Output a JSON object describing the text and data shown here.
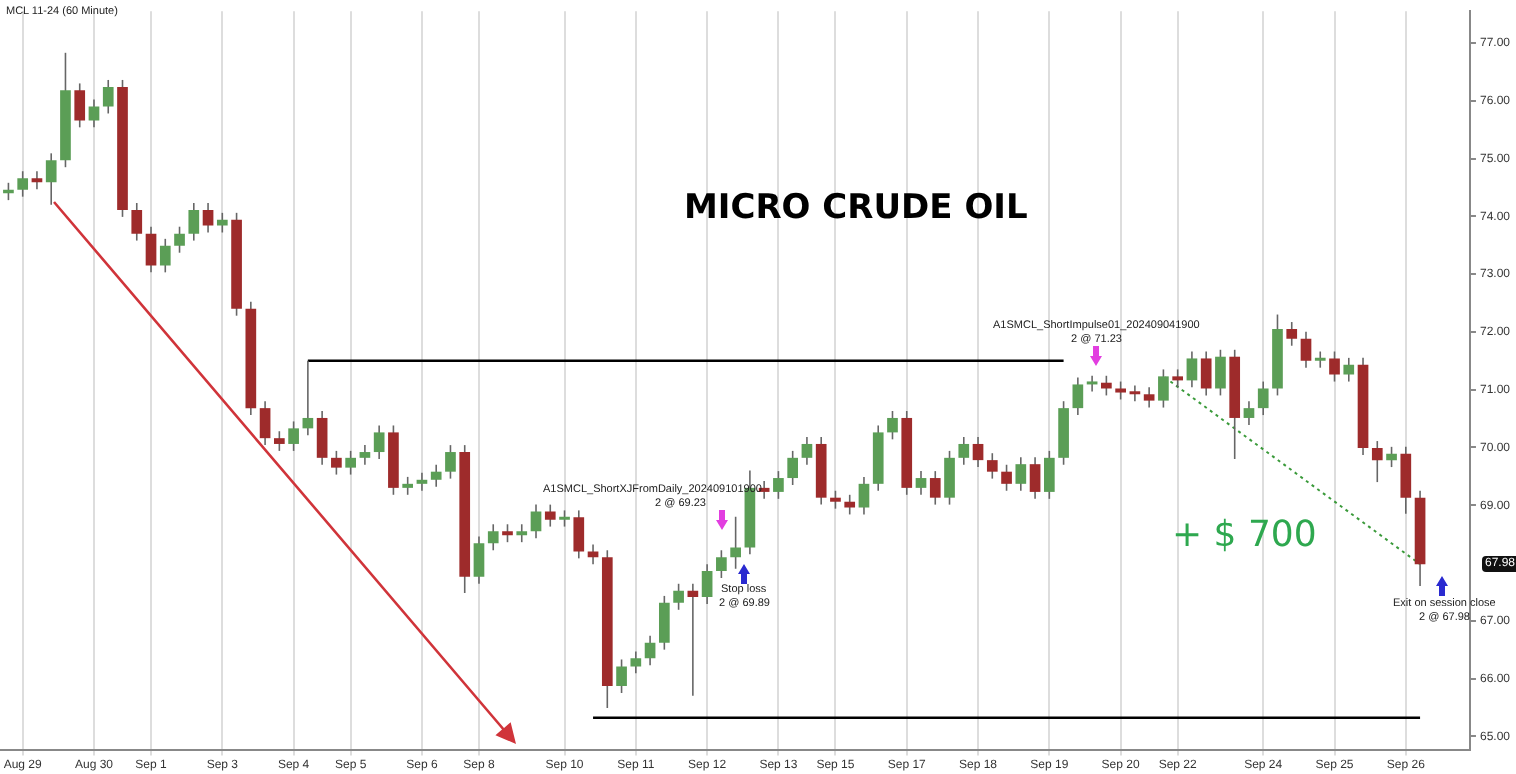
{
  "chart_data": {
    "type": "candlestick",
    "title": "MICRO CRUDE OIL",
    "subtitle": "MCL 11-24 (60 Minute)",
    "categories": [
      null,
      "Aug 29",
      null,
      null,
      null,
      null,
      "Aug 30",
      null,
      null,
      null,
      "Sep 1",
      null,
      null,
      null,
      null,
      "Sep 3",
      null,
      null,
      null,
      null,
      "Sep 4",
      null,
      null,
      null,
      "Sep 5",
      null,
      null,
      null,
      null,
      "Sep 6",
      null,
      null,
      null,
      "Sep 8",
      null,
      null,
      null,
      null,
      null,
      "Sep 10",
      null,
      null,
      null,
      null,
      "Sep 11",
      null,
      null,
      null,
      null,
      "Sep 12",
      null,
      null,
      null,
      null,
      "Sep 13",
      null,
      null,
      null,
      "Sep 15",
      null,
      null,
      null,
      null,
      "Sep 17",
      null,
      null,
      null,
      null,
      "Sep 18",
      null,
      null,
      null,
      null,
      "Sep 19",
      null,
      null,
      null,
      null,
      "Sep 20",
      null,
      null,
      null,
      "Sep 22",
      null,
      null,
      null,
      null,
      null,
      "Sep 24",
      null,
      null,
      null,
      null,
      "Sep 25",
      null,
      null,
      null,
      null,
      "Sep 26",
      null,
      null,
      null,
      null
    ],
    "ohlc": [
      [
        74.4,
        74.58,
        74.28,
        74.46
      ],
      [
        74.46,
        74.78,
        74.34,
        74.66
      ],
      [
        74.66,
        74.78,
        74.47,
        74.59
      ],
      [
        74.59,
        75.09,
        74.2,
        74.97
      ],
      [
        74.97,
        76.83,
        74.85,
        76.18
      ],
      [
        76.18,
        76.3,
        75.54,
        75.66
      ],
      [
        75.66,
        76.02,
        75.54,
        75.9
      ],
      [
        75.9,
        76.36,
        75.78,
        76.24
      ],
      [
        76.24,
        76.36,
        73.99,
        74.11
      ],
      [
        74.11,
        74.23,
        73.58,
        73.7
      ],
      [
        73.7,
        73.82,
        73.03,
        73.15
      ],
      [
        73.15,
        73.61,
        73.03,
        73.49
      ],
      [
        73.49,
        73.82,
        73.37,
        73.7
      ],
      [
        73.7,
        74.23,
        73.58,
        74.11
      ],
      [
        74.11,
        74.23,
        73.72,
        73.84
      ],
      [
        73.84,
        74.06,
        73.72,
        73.94
      ],
      [
        73.94,
        74.06,
        72.28,
        72.4
      ],
      [
        72.4,
        72.52,
        70.56,
        70.68
      ],
      [
        70.68,
        70.8,
        70.04,
        70.16
      ],
      [
        70.16,
        70.28,
        69.94,
        70.06
      ],
      [
        70.06,
        70.45,
        69.94,
        70.33
      ],
      [
        70.33,
        71.5,
        70.21,
        70.51
      ],
      [
        70.51,
        70.63,
        69.7,
        69.82
      ],
      [
        69.82,
        69.94,
        69.53,
        69.65
      ],
      [
        69.65,
        69.94,
        69.53,
        69.82
      ],
      [
        69.82,
        70.04,
        69.7,
        69.92
      ],
      [
        69.92,
        70.38,
        69.8,
        70.26
      ],
      [
        70.26,
        70.38,
        69.18,
        69.3
      ],
      [
        69.3,
        69.49,
        69.18,
        69.37
      ],
      [
        69.37,
        69.56,
        69.25,
        69.44
      ],
      [
        69.44,
        69.7,
        69.32,
        69.58
      ],
      [
        69.58,
        70.04,
        69.46,
        69.92
      ],
      [
        69.92,
        70.04,
        67.48,
        67.76
      ],
      [
        67.76,
        68.46,
        67.64,
        68.34
      ],
      [
        68.34,
        68.67,
        68.22,
        68.55
      ],
      [
        68.55,
        68.67,
        68.36,
        68.48
      ],
      [
        68.48,
        68.67,
        68.36,
        68.55
      ],
      [
        68.55,
        69.01,
        68.43,
        68.89
      ],
      [
        68.89,
        69.01,
        68.63,
        68.75
      ],
      [
        68.75,
        68.91,
        68.63,
        68.79
      ],
      [
        68.79,
        68.91,
        68.08,
        68.2
      ],
      [
        68.2,
        68.32,
        67.98,
        68.1
      ],
      [
        68.1,
        68.22,
        65.49,
        65.87
      ],
      [
        65.87,
        66.33,
        65.75,
        66.21
      ],
      [
        66.21,
        66.47,
        66.09,
        66.35
      ],
      [
        66.35,
        66.74,
        66.23,
        66.62
      ],
      [
        66.62,
        67.43,
        66.5,
        67.31
      ],
      [
        67.31,
        67.64,
        67.19,
        67.52
      ],
      [
        67.52,
        67.64,
        65.7,
        67.41
      ],
      [
        67.41,
        67.98,
        67.29,
        67.86
      ],
      [
        67.86,
        68.22,
        67.74,
        68.1
      ],
      [
        68.1,
        68.8,
        67.9,
        68.27
      ],
      [
        68.27,
        69.6,
        68.15,
        69.3
      ],
      [
        69.3,
        69.42,
        69.11,
        69.23
      ],
      [
        69.23,
        69.59,
        69.11,
        69.47
      ],
      [
        69.47,
        69.94,
        69.35,
        69.82
      ],
      [
        69.82,
        70.18,
        69.7,
        70.06
      ],
      [
        70.06,
        70.18,
        69.01,
        69.13
      ],
      [
        69.13,
        69.25,
        68.94,
        69.06
      ],
      [
        69.06,
        69.18,
        68.84,
        68.96
      ],
      [
        68.96,
        69.49,
        68.84,
        69.37
      ],
      [
        69.37,
        70.38,
        69.25,
        70.26
      ],
      [
        70.26,
        70.63,
        70.14,
        70.51
      ],
      [
        70.51,
        70.63,
        69.18,
        69.3
      ],
      [
        69.3,
        69.59,
        69.18,
        69.47
      ],
      [
        69.47,
        69.59,
        69.01,
        69.13
      ],
      [
        69.13,
        69.94,
        69.01,
        69.82
      ],
      [
        69.82,
        70.18,
        69.7,
        70.06
      ],
      [
        70.06,
        70.18,
        69.66,
        69.78
      ],
      [
        69.78,
        69.9,
        69.46,
        69.58
      ],
      [
        69.58,
        69.7,
        69.25,
        69.37
      ],
      [
        69.37,
        69.83,
        69.25,
        69.71
      ],
      [
        69.71,
        69.83,
        69.11,
        69.23
      ],
      [
        69.23,
        69.94,
        69.11,
        69.82
      ],
      [
        69.82,
        70.8,
        69.7,
        70.68
      ],
      [
        70.68,
        71.21,
        70.56,
        71.09
      ],
      [
        71.09,
        71.24,
        70.97,
        71.12
      ],
      [
        71.12,
        71.24,
        70.9,
        71.02
      ],
      [
        71.02,
        71.14,
        70.83,
        70.95
      ],
      [
        70.95,
        71.07,
        70.8,
        70.92
      ],
      [
        70.92,
        71.04,
        70.69,
        70.81
      ],
      [
        70.81,
        71.35,
        70.69,
        71.23
      ],
      [
        71.23,
        71.35,
        71.04,
        71.16
      ],
      [
        71.16,
        71.66,
        71.04,
        71.54
      ],
      [
        71.54,
        71.66,
        70.9,
        71.02
      ],
      [
        71.02,
        71.69,
        70.9,
        71.57
      ],
      [
        71.57,
        71.69,
        69.8,
        70.51
      ],
      [
        70.51,
        70.8,
        70.39,
        70.68
      ],
      [
        70.68,
        71.14,
        70.56,
        71.02
      ],
      [
        71.02,
        72.3,
        70.9,
        72.05
      ],
      [
        72.05,
        72.17,
        71.76,
        71.88
      ],
      [
        71.88,
        72.0,
        71.38,
        71.5
      ],
      [
        71.5,
        71.66,
        71.38,
        71.54
      ],
      [
        71.54,
        71.66,
        71.14,
        71.26
      ],
      [
        71.26,
        71.55,
        71.14,
        71.43
      ],
      [
        71.43,
        71.55,
        69.87,
        69.99
      ],
      [
        69.99,
        70.11,
        69.4,
        69.78
      ],
      [
        69.78,
        70.01,
        69.66,
        69.89
      ],
      [
        69.89,
        70.01,
        68.85,
        69.13
      ],
      [
        69.13,
        69.25,
        67.6,
        67.98
      ],
      null,
      null,
      null
    ],
    "colors": [
      "#5b9e56",
      "#5b9e56",
      "#9e2b2b",
      "#5b9e56",
      "#5b9e56",
      "#9e2b2b",
      "#5b9e56",
      "#5b9e56",
      "#9e2b2b",
      "#9e2b2b",
      "#9e2b2b",
      "#5b9e56",
      "#5b9e56",
      "#5b9e56",
      "#9e2b2b",
      "#5b9e56",
      "#9e2b2b",
      "#9e2b2b",
      "#9e2b2b",
      "#9e2b2b",
      "#5b9e56",
      "#5b9e56",
      "#9e2b2b",
      "#9e2b2b",
      "#5b9e56",
      "#5b9e56",
      "#5b9e56",
      "#9e2b2b",
      "#5b9e56",
      "#5b9e56",
      "#5b9e56",
      "#5b9e56",
      "#9e2b2b",
      "#5b9e56",
      "#5b9e56",
      "#9e2b2b",
      "#5b9e56",
      "#5b9e56",
      "#9e2b2b",
      "#5b9e56",
      "#9e2b2b",
      "#9e2b2b",
      "#9e2b2b",
      "#5b9e56",
      "#5b9e56",
      "#5b9e56",
      "#5b9e56",
      "#5b9e56",
      "#9e2b2b",
      "#5b9e56",
      "#5b9e56",
      "#5b9e56",
      "#5b9e56",
      "#9e2b2b",
      "#5b9e56",
      "#5b9e56",
      "#5b9e56",
      "#9e2b2b",
      "#9e2b2b",
      "#9e2b2b",
      "#5b9e56",
      "#5b9e56",
      "#5b9e56",
      "#9e2b2b",
      "#5b9e56",
      "#9e2b2b",
      "#5b9e56",
      "#5b9e56",
      "#9e2b2b",
      "#9e2b2b",
      "#9e2b2b",
      "#5b9e56",
      "#9e2b2b",
      "#5b9e56",
      "#5b9e56",
      "#5b9e56",
      "#5b9e56",
      "#9e2b2b",
      "#9e2b2b",
      "#9e2b2b",
      "#9e2b2b",
      "#5b9e56",
      "#9e2b2b",
      "#5b9e56",
      "#9e2b2b",
      "#5b9e56",
      "#9e2b2b",
      "#5b9e56",
      "#5b9e56",
      "#5b9e56",
      "#9e2b2b",
      "#9e2b2b",
      "#5b9e56",
      "#9e2b2b",
      "#5b9e56",
      "#9e2b2b",
      "#9e2b2b",
      "#5b9e56",
      "#9e2b2b",
      "#9e2b2b",
      null,
      null,
      null
    ],
    "series": [
      {
        "type": "line",
        "color": "#000000",
        "values": [
          null,
          null,
          null,
          null,
          null,
          null,
          null,
          null,
          null,
          null,
          null,
          null,
          null,
          null,
          null,
          null,
          null,
          null,
          null,
          null,
          null,
          71.5,
          71.5,
          71.5,
          71.5,
          71.5,
          71.5,
          71.5,
          71.5,
          71.5,
          71.5,
          71.5,
          71.5,
          71.5,
          71.5,
          71.5,
          71.5,
          71.5,
          71.5,
          71.5,
          71.5,
          71.5,
          71.5,
          71.5,
          71.5,
          71.5,
          71.5,
          71.5,
          71.5,
          71.5,
          71.5,
          71.5,
          71.5,
          71.5,
          71.5,
          71.5,
          71.5,
          71.5,
          71.5,
          71.5,
          71.5,
          71.5,
          71.5,
          71.5,
          71.5,
          71.5,
          71.5,
          71.5,
          71.5,
          71.5,
          71.5,
          71.5,
          71.5,
          71.5,
          71.5,
          null,
          null,
          null,
          null,
          null,
          null,
          null,
          null,
          null,
          null,
          null,
          null,
          null,
          null,
          null,
          null,
          null,
          null,
          null,
          null,
          null,
          null,
          null,
          null,
          null,
          null,
          null,
          null
        ]
      },
      {
        "type": "line",
        "color": "#000000",
        "values": [
          null,
          null,
          null,
          null,
          null,
          null,
          null,
          null,
          null,
          null,
          null,
          null,
          null,
          null,
          null,
          null,
          null,
          null,
          null,
          null,
          null,
          null,
          null,
          null,
          null,
          null,
          null,
          null,
          null,
          null,
          null,
          null,
          null,
          null,
          null,
          null,
          null,
          null,
          null,
          null,
          null,
          65.32,
          65.32,
          65.32,
          65.32,
          65.32,
          65.32,
          65.32,
          65.32,
          65.32,
          65.32,
          65.32,
          65.32,
          65.32,
          65.32,
          65.32,
          65.32,
          65.32,
          65.32,
          65.32,
          65.32,
          65.32,
          65.32,
          65.32,
          65.32,
          65.32,
          65.32,
          65.32,
          65.32,
          65.32,
          65.32,
          65.32,
          65.32,
          65.32,
          65.32,
          65.32,
          65.32,
          65.32,
          65.32,
          65.32,
          65.32,
          65.32,
          65.32,
          65.32,
          65.32,
          65.32,
          65.32,
          65.32,
          65.32,
          65.32,
          65.32,
          65.32,
          65.32,
          65.32,
          65.32,
          65.32,
          65.32,
          65.32,
          65.32,
          65.32,
          null,
          null,
          null
        ]
      },
      {
        "type": "line",
        "color": "#3a9a3a",
        "line_style": "dotted",
        "values": [
          null,
          null,
          null,
          null,
          null,
          null,
          null,
          null,
          null,
          null,
          null,
          null,
          null,
          null,
          null,
          null,
          null,
          null,
          null,
          null,
          null,
          null,
          null,
          null,
          null,
          null,
          null,
          null,
          null,
          null,
          null,
          null,
          null,
          null,
          null,
          null,
          null,
          null,
          null,
          null,
          null,
          null,
          null,
          null,
          null,
          null,
          null,
          null,
          null,
          null,
          null,
          null,
          null,
          null,
          null,
          null,
          null,
          null,
          null,
          null,
          null,
          null,
          null,
          null,
          null,
          null,
          null,
          null,
          null,
          null,
          null,
          null,
          null,
          null,
          null,
          null,
          null,
          null,
          null,
          null,
          null,
          71.23,
          null,
          null,
          null,
          null,
          null,
          null,
          null,
          null,
          null,
          null,
          null,
          null,
          null,
          null,
          null,
          null,
          null,
          67.98,
          null,
          null,
          null
        ]
      }
    ],
    "ylim": [
      64.77,
      77.55
    ],
    "yticks": [
      {
        "value": 65,
        "label": "65.00"
      },
      {
        "value": 66,
        "label": "66.00"
      },
      {
        "value": 67,
        "label": "67.00"
      },
      {
        "value": 69,
        "label": "69.00"
      },
      {
        "value": 70,
        "label": "70.00"
      },
      {
        "value": 71,
        "label": "71.00"
      },
      {
        "value": 72,
        "label": "72.00"
      },
      {
        "value": 73,
        "label": "73.00"
      },
      {
        "value": 74,
        "label": "74.00"
      },
      {
        "value": 75,
        "label": "75.00"
      },
      {
        "value": 76,
        "label": "76.00"
      },
      {
        "value": 77,
        "label": "77.00"
      }
    ],
    "grid": "x",
    "legend": false,
    "annotations": [
      "A1SMCL_ShortXJFromDaily_202409101900",
      "2 @ 69.23",
      "Stop loss",
      "2 @ 69.89",
      "A1SMCL_ShortImpulse01_202409041900",
      "2 @ 71.23",
      "Exit on session close",
      "2 @ 67.98",
      "+ $ 700",
      "67.98"
    ]
  }
}
